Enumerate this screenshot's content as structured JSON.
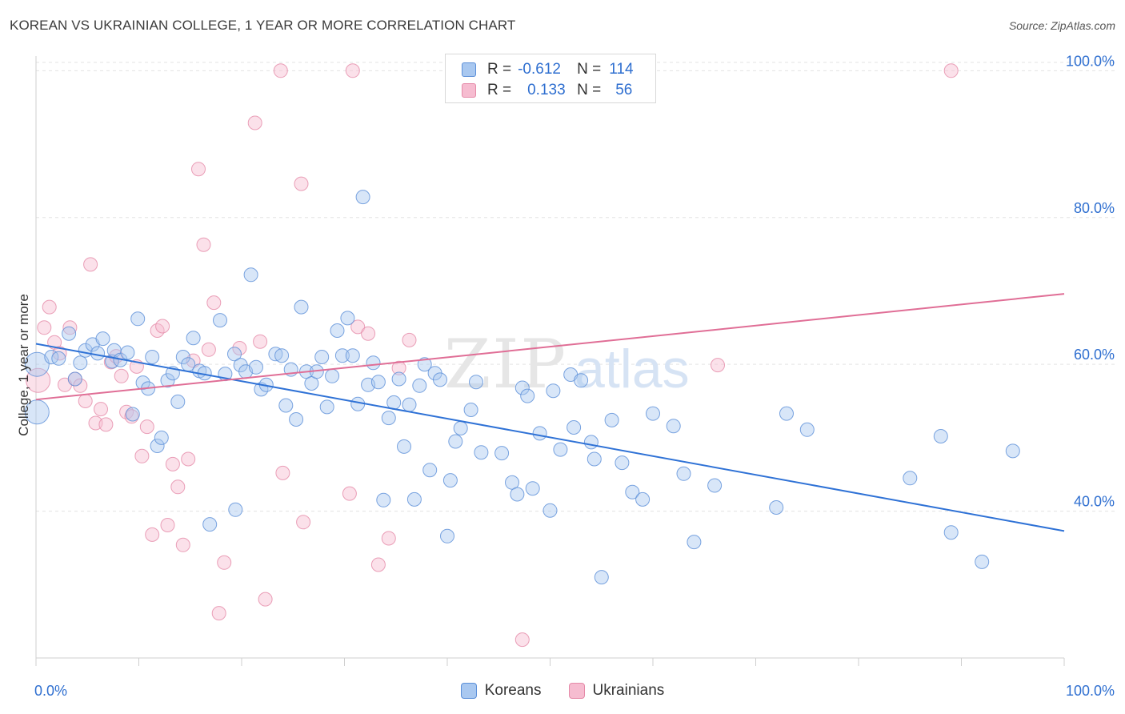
{
  "header": {
    "title": "KOREAN VS UKRAINIAN COLLEGE, 1 YEAR OR MORE CORRELATION CHART",
    "source": "Source: ZipAtlas.com"
  },
  "watermark": {
    "zip": "ZIP",
    "atlas": "atlas"
  },
  "legend_top": {
    "rows": [
      {
        "r_label": "R =",
        "r_value": "-0.612",
        "n_label": "N =",
        "n_value": "114"
      },
      {
        "r_label": "R =",
        "r_value": "0.133",
        "n_label": "N =",
        "n_value": "56"
      }
    ]
  },
  "legend_bottom": {
    "koreans": "Koreans",
    "ukrainians": "Ukrainians"
  },
  "colors": {
    "koreans_fill": "#a9c8f0",
    "koreans_stroke": "#5b8fd8",
    "koreans_line": "#2f72d6",
    "ukrainians_fill": "#f6bcd0",
    "ukrainians_stroke": "#e58aa8",
    "ukrainians_line": "#e06e96",
    "tick_label": "#2f6fd0"
  },
  "chart_data": {
    "type": "scatter",
    "title": "KOREAN VS UKRAINIAN COLLEGE, 1 YEAR OR MORE CORRELATION CHART",
    "xlabel": "",
    "ylabel": "College, 1 year or more",
    "xlim": [
      0,
      100
    ],
    "ylim": [
      20,
      102
    ],
    "x_tick_labels": [
      "0.0%",
      "100.0%"
    ],
    "y_ticks": [
      40,
      60,
      80,
      100
    ],
    "y_tick_labels": [
      "40.0%",
      "60.0%",
      "80.0%",
      "100.0%"
    ],
    "grid": "horizontal dashed",
    "legend_position": "top-center",
    "series": [
      {
        "name": "Koreans",
        "r": -0.612,
        "n": 114,
        "trend": {
          "x": [
            0,
            100
          ],
          "y": [
            62.8,
            37.3
          ]
        },
        "points": [
          [
            0.1,
            60.0,
            2
          ],
          [
            0.1,
            53.5,
            2
          ],
          [
            1.5,
            61.0,
            1
          ],
          [
            2.2,
            60.8,
            1
          ],
          [
            3.2,
            64.2,
            1
          ],
          [
            3.8,
            58.0,
            1
          ],
          [
            4.3,
            60.2,
            1
          ],
          [
            4.8,
            61.9,
            1
          ],
          [
            5.5,
            62.7,
            1
          ],
          [
            6.0,
            61.5,
            1
          ],
          [
            6.5,
            63.5,
            1
          ],
          [
            7.4,
            60.4,
            1
          ],
          [
            7.6,
            61.9,
            1
          ],
          [
            8.2,
            60.6,
            1
          ],
          [
            8.9,
            61.6,
            1
          ],
          [
            9.4,
            53.2,
            1
          ],
          [
            9.9,
            66.2,
            1
          ],
          [
            10.4,
            57.5,
            1
          ],
          [
            10.9,
            56.7,
            1
          ],
          [
            11.3,
            61.0,
            1
          ],
          [
            11.8,
            48.9,
            1
          ],
          [
            12.2,
            50.0,
            1
          ],
          [
            12.8,
            57.8,
            1
          ],
          [
            13.3,
            58.8,
            1
          ],
          [
            13.8,
            54.9,
            1
          ],
          [
            14.3,
            61.0,
            1
          ],
          [
            14.8,
            60.0,
            1
          ],
          [
            15.3,
            63.6,
            1
          ],
          [
            15.9,
            59.1,
            1
          ],
          [
            16.4,
            58.8,
            1
          ],
          [
            16.9,
            38.2,
            1
          ],
          [
            17.9,
            66.0,
            1
          ],
          [
            18.4,
            58.7,
            1
          ],
          [
            19.3,
            61.4,
            1
          ],
          [
            19.4,
            40.2,
            1
          ],
          [
            19.9,
            59.9,
            1
          ],
          [
            20.4,
            59.0,
            1
          ],
          [
            20.9,
            72.2,
            1
          ],
          [
            21.4,
            59.6,
            1
          ],
          [
            21.9,
            56.6,
            1
          ],
          [
            22.4,
            57.2,
            1
          ],
          [
            23.3,
            61.4,
            1
          ],
          [
            23.9,
            61.2,
            1
          ],
          [
            24.3,
            54.4,
            1
          ],
          [
            24.8,
            59.3,
            1
          ],
          [
            25.3,
            52.5,
            1
          ],
          [
            25.8,
            67.8,
            1
          ],
          [
            26.3,
            59.0,
            1
          ],
          [
            26.8,
            57.4,
            1
          ],
          [
            27.3,
            59.0,
            1
          ],
          [
            27.8,
            61.0,
            1
          ],
          [
            28.3,
            54.2,
            1
          ],
          [
            28.8,
            58.4,
            1
          ],
          [
            29.3,
            64.6,
            1
          ],
          [
            29.8,
            61.2,
            1
          ],
          [
            30.3,
            66.3,
            1
          ],
          [
            30.8,
            61.2,
            1
          ],
          [
            31.3,
            54.6,
            1
          ],
          [
            31.8,
            82.8,
            1
          ],
          [
            32.3,
            57.2,
            1
          ],
          [
            32.8,
            60.2,
            1
          ],
          [
            33.3,
            57.6,
            1
          ],
          [
            33.8,
            41.5,
            1
          ],
          [
            34.3,
            52.7,
            1
          ],
          [
            34.8,
            54.8,
            1
          ],
          [
            35.3,
            58.0,
            1
          ],
          [
            35.8,
            48.8,
            1
          ],
          [
            36.3,
            54.5,
            1
          ],
          [
            36.8,
            41.6,
            1
          ],
          [
            37.3,
            57.1,
            1
          ],
          [
            37.8,
            60.0,
            1
          ],
          [
            38.3,
            45.6,
            1
          ],
          [
            38.8,
            58.8,
            1
          ],
          [
            39.3,
            57.9,
            1
          ],
          [
            40.0,
            36.6,
            1
          ],
          [
            40.3,
            44.2,
            1
          ],
          [
            40.8,
            49.5,
            1
          ],
          [
            41.3,
            51.3,
            1
          ],
          [
            42.3,
            53.8,
            1
          ],
          [
            42.8,
            57.6,
            1
          ],
          [
            43.3,
            48.0,
            1
          ],
          [
            45.3,
            47.9,
            1
          ],
          [
            46.3,
            43.9,
            1
          ],
          [
            46.8,
            42.3,
            1
          ],
          [
            47.3,
            56.8,
            1
          ],
          [
            47.8,
            55.7,
            1
          ],
          [
            48.3,
            43.1,
            1
          ],
          [
            49.0,
            50.6,
            1
          ],
          [
            50.0,
            40.1,
            1
          ],
          [
            50.3,
            56.4,
            1
          ],
          [
            51.0,
            48.4,
            1
          ],
          [
            52.0,
            58.6,
            1
          ],
          [
            52.3,
            51.4,
            1
          ],
          [
            53.0,
            57.8,
            1
          ],
          [
            54.0,
            49.4,
            1
          ],
          [
            54.3,
            47.1,
            1
          ],
          [
            55.0,
            31.0,
            1
          ],
          [
            56.0,
            52.4,
            1
          ],
          [
            57.0,
            46.6,
            1
          ],
          [
            58.0,
            42.6,
            1
          ],
          [
            59.0,
            41.6,
            1
          ],
          [
            60.0,
            53.3,
            1
          ],
          [
            62.0,
            51.6,
            1
          ],
          [
            63.0,
            45.1,
            1
          ],
          [
            64.0,
            35.8,
            1
          ],
          [
            66.0,
            43.5,
            1
          ],
          [
            72.0,
            40.5,
            1
          ],
          [
            73.0,
            53.3,
            1
          ],
          [
            75.0,
            51.1,
            1
          ],
          [
            89.0,
            37.1,
            1
          ],
          [
            92.0,
            33.1,
            1
          ],
          [
            85.0,
            44.5,
            1
          ],
          [
            88.0,
            50.2,
            1
          ],
          [
            95.0,
            48.2,
            1
          ]
        ]
      },
      {
        "name": "Ukrainians",
        "r": 0.133,
        "n": 56,
        "trend": {
          "x": [
            0,
            100
          ],
          "y": [
            55.2,
            69.6
          ]
        },
        "points": [
          [
            0.2,
            57.8,
            2
          ],
          [
            0.8,
            65.0,
            1
          ],
          [
            1.3,
            67.8,
            1
          ],
          [
            1.8,
            63.0,
            1
          ],
          [
            2.3,
            61.5,
            1
          ],
          [
            2.8,
            57.2,
            1
          ],
          [
            3.3,
            65.0,
            1
          ],
          [
            3.8,
            58.0,
            1
          ],
          [
            4.3,
            57.1,
            1
          ],
          [
            4.8,
            55.0,
            1
          ],
          [
            5.3,
            73.6,
            1
          ],
          [
            5.8,
            52.0,
            1
          ],
          [
            6.3,
            53.9,
            1
          ],
          [
            6.8,
            51.8,
            1
          ],
          [
            7.3,
            60.3,
            1
          ],
          [
            7.8,
            61.1,
            1
          ],
          [
            8.3,
            58.4,
            1
          ],
          [
            8.8,
            53.5,
            1
          ],
          [
            9.3,
            52.9,
            1
          ],
          [
            9.8,
            59.7,
            1
          ],
          [
            10.3,
            47.5,
            1
          ],
          [
            10.8,
            51.5,
            1
          ],
          [
            11.3,
            36.8,
            1
          ],
          [
            11.8,
            64.6,
            1
          ],
          [
            12.3,
            65.2,
            1
          ],
          [
            12.8,
            38.1,
            1
          ],
          [
            13.3,
            46.4,
            1
          ],
          [
            13.8,
            43.3,
            1
          ],
          [
            14.3,
            35.4,
            1
          ],
          [
            14.8,
            47.1,
            1
          ],
          [
            15.3,
            60.5,
            1
          ],
          [
            15.8,
            86.6,
            1
          ],
          [
            16.3,
            76.3,
            1
          ],
          [
            16.8,
            62.0,
            1
          ],
          [
            17.3,
            68.4,
            1
          ],
          [
            17.8,
            26.1,
            1
          ],
          [
            18.3,
            33.0,
            1
          ],
          [
            19.8,
            62.2,
            1
          ],
          [
            21.3,
            92.9,
            1
          ],
          [
            21.8,
            63.1,
            1
          ],
          [
            22.3,
            28.0,
            1
          ],
          [
            23.8,
            100.0,
            1
          ],
          [
            24.0,
            45.2,
            1
          ],
          [
            25.8,
            84.6,
            1
          ],
          [
            26.0,
            38.5,
            1
          ],
          [
            30.5,
            42.4,
            1
          ],
          [
            30.8,
            100.0,
            1
          ],
          [
            31.3,
            65.1,
            1
          ],
          [
            32.3,
            64.2,
            1
          ],
          [
            33.3,
            32.7,
            1
          ],
          [
            34.3,
            36.3,
            1
          ],
          [
            35.3,
            59.5,
            1
          ],
          [
            36.3,
            63.3,
            1
          ],
          [
            47.3,
            22.5,
            1
          ],
          [
            66.3,
            59.9,
            1
          ],
          [
            89.0,
            100.0,
            1
          ]
        ]
      }
    ]
  }
}
